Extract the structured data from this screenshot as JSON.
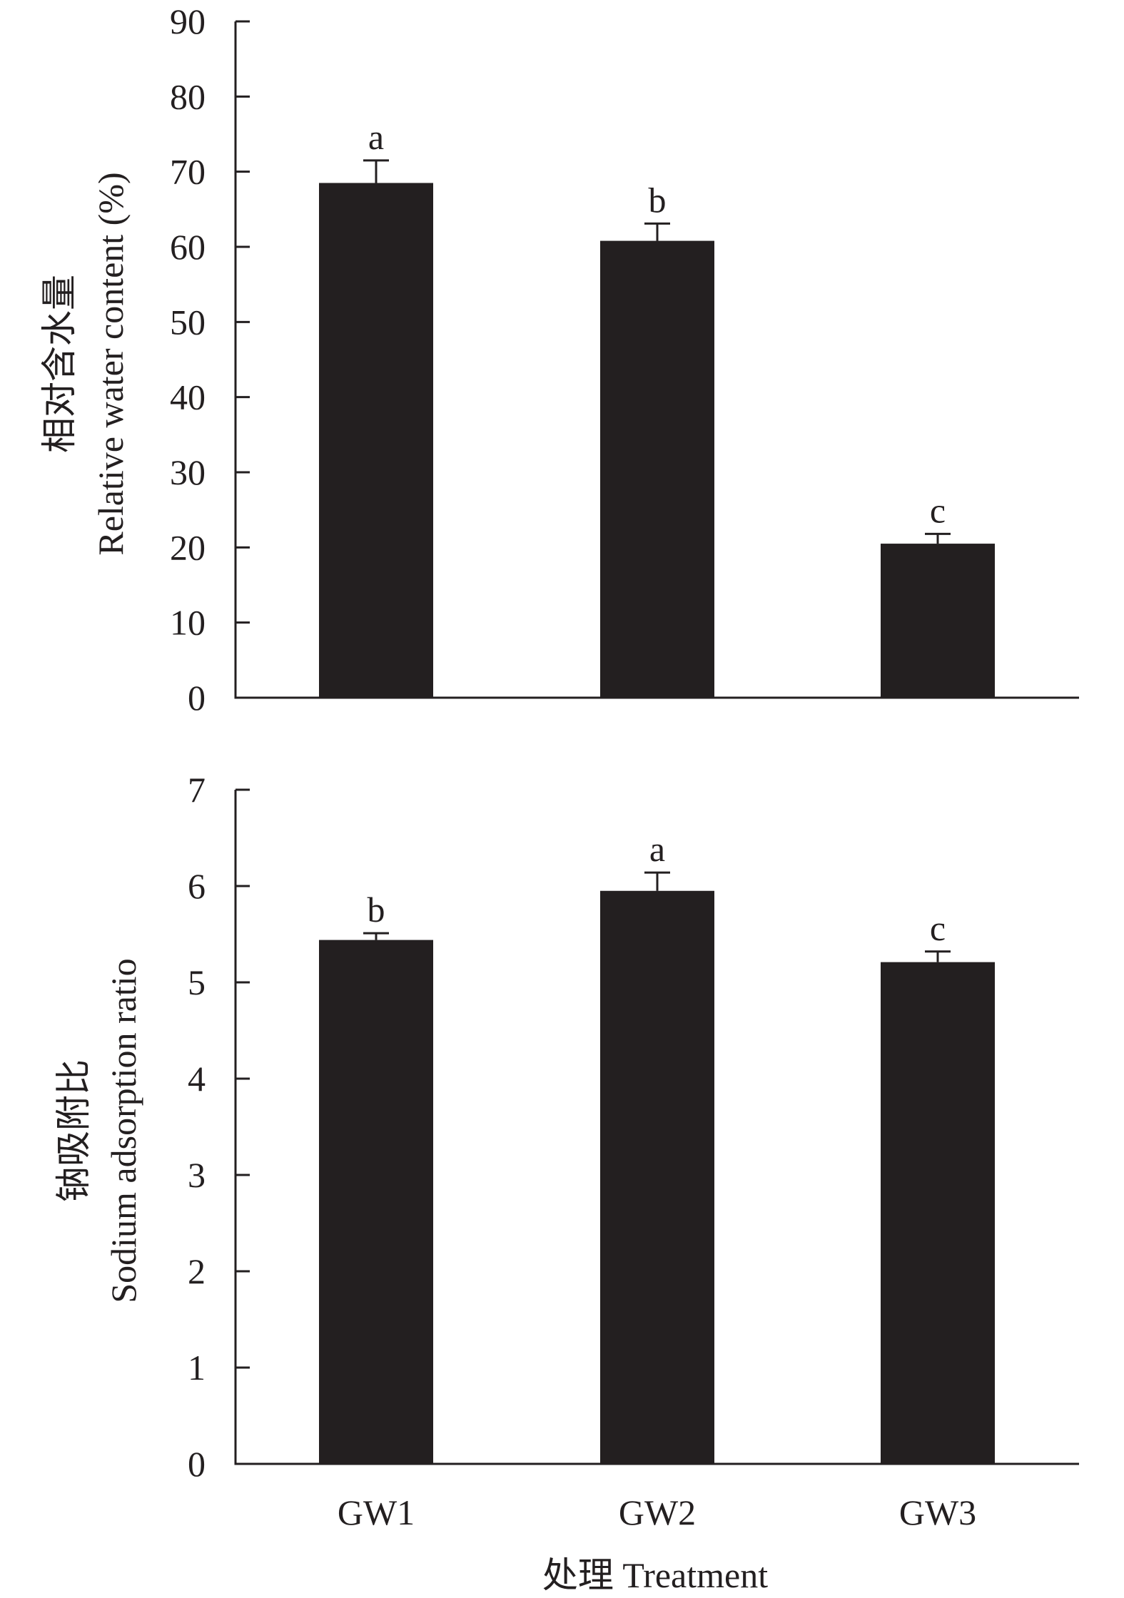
{
  "chart_data": [
    {
      "type": "bar",
      "categories": [
        "GW1",
        "GW2",
        "GW3"
      ],
      "values": [
        68.5,
        60.8,
        20.5
      ],
      "errors": [
        3.0,
        2.3,
        1.3
      ],
      "significance": [
        "a",
        "b",
        "c"
      ],
      "ylabel_line1": "相对含水量",
      "ylabel_line2": "Relative water content (%)",
      "ylim": [
        0,
        90
      ],
      "yticks": [
        0,
        10,
        20,
        30,
        40,
        50,
        60,
        70,
        80,
        90
      ],
      "color": "#231f20"
    },
    {
      "type": "bar",
      "categories": [
        "GW1",
        "GW2",
        "GW3"
      ],
      "values": [
        5.44,
        5.95,
        5.21
      ],
      "errors": [
        0.07,
        0.19,
        0.11
      ],
      "significance": [
        "b",
        "a",
        "c"
      ],
      "ylabel_line1": "钠吸附比",
      "ylabel_line2": "Sodium adsorption ratio",
      "ylim": [
        0,
        7
      ],
      "yticks": [
        0,
        1,
        2,
        3,
        4,
        5,
        6,
        7
      ],
      "color": "#231f20"
    }
  ],
  "xlabel": "处理 Treatment"
}
